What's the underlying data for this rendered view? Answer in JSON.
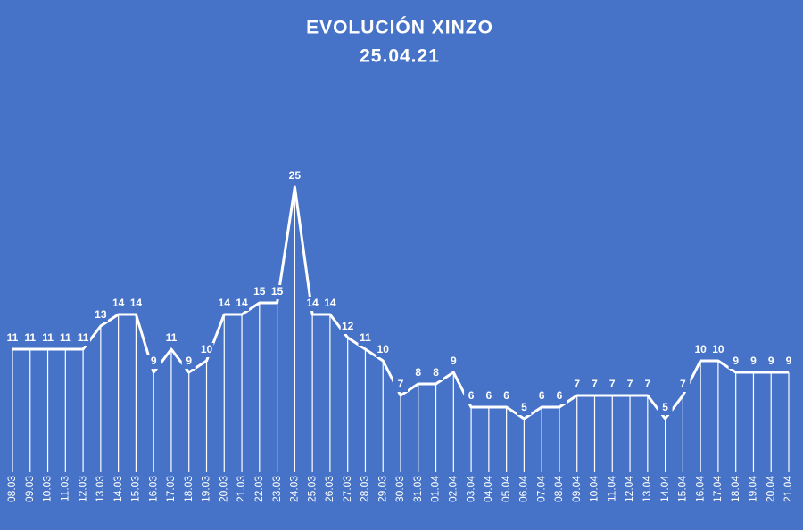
{
  "chart_data": {
    "type": "line",
    "title": "EVOLUCIÓN XINZO",
    "subtitle": "25.04.21",
    "categories": [
      "08.03",
      "09.03",
      "10.03",
      "11.03",
      "12.03",
      "13.03",
      "14.03",
      "15.03",
      "16.03",
      "17.03",
      "18.03",
      "19.03",
      "20.03",
      "21.03",
      "22.03",
      "23.03",
      "24.03",
      "25.03",
      "26.03",
      "27.03",
      "28.03",
      "29.03",
      "30.03",
      "31.03",
      "01.04",
      "02.04",
      "03.04",
      "04.04",
      "05.04",
      "06.04",
      "07.04",
      "08.04",
      "09.04",
      "10.04",
      "11.04",
      "12.04",
      "13.04",
      "14.04",
      "15.04",
      "16.04",
      "17.04",
      "18.04",
      "19.04",
      "20.04",
      "21.04"
    ],
    "values": [
      11,
      11,
      11,
      11,
      11,
      13,
      14,
      14,
      9,
      11,
      9,
      10,
      14,
      14,
      15,
      15,
      25,
      14,
      14,
      12,
      11,
      10,
      7,
      8,
      8,
      9,
      6,
      6,
      6,
      5,
      6,
      6,
      7,
      7,
      7,
      7,
      7,
      5,
      7,
      10,
      10,
      9,
      9,
      9,
      9
    ],
    "color": "#ffffff"
  }
}
